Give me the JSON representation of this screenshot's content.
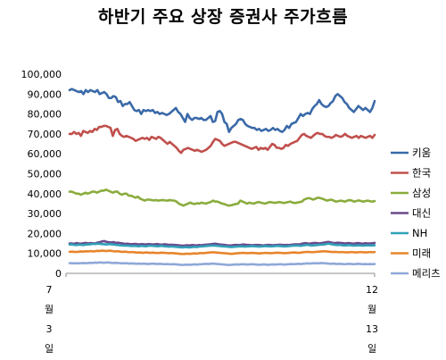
{
  "chart_data": {
    "type": "line",
    "title": "하반기 주요 상장 증권사 주가흐름",
    "xlabel": "",
    "ylabel": "",
    "ylim": [
      0,
      100000
    ],
    "y_ticks": [
      "0",
      "10,000",
      "20,000",
      "30,000",
      "40,000",
      "50,000",
      "60,000",
      "70,000",
      "80,000",
      "90,000",
      "100,000"
    ],
    "y_tick_values": [
      0,
      10000,
      20000,
      30000,
      40000,
      50000,
      60000,
      70000,
      80000,
      90000,
      100000
    ],
    "x_start_label": [
      "7",
      "월",
      "3",
      "일"
    ],
    "x_end_label": [
      "12",
      "월",
      "13",
      "일"
    ],
    "grid": false,
    "legend_position": "right",
    "series": [
      {
        "name": "키움",
        "color": "#3b6aa8",
        "values": [
          92000,
          92500,
          92000,
          91500,
          91000,
          91500,
          90000,
          92000,
          91000,
          92000,
          91500,
          91000,
          92000,
          90000,
          90500,
          91000,
          90000,
          88000,
          88000,
          89000,
          88500,
          86000,
          86500,
          84000,
          85000,
          85000,
          86000,
          84000,
          82000,
          81500,
          82000,
          80000,
          82000,
          81500,
          82000,
          81500,
          82000,
          80500,
          81000,
          80000,
          80500,
          80000,
          79500,
          80000,
          81000,
          82000,
          83000,
          81000,
          80000,
          78000,
          76000,
          80000,
          78000,
          77000,
          78000,
          78000,
          77500,
          78000,
          77000,
          77000,
          78000,
          79000,
          76000,
          76500,
          81000,
          81500,
          80000,
          76000,
          75000,
          71000,
          73000,
          74000,
          75000,
          77000,
          77500,
          77000,
          75000,
          74000,
          73500,
          73000,
          73000,
          72000,
          72500,
          71500,
          72000,
          72500,
          71500,
          72000,
          73000,
          72000,
          72500,
          71500,
          71000,
          72000,
          74000,
          73000,
          75000,
          75500,
          76000,
          78000,
          80000,
          79000,
          80000,
          80500,
          80000,
          82500,
          84000,
          85000,
          87000,
          85000,
          84000,
          83500,
          84000,
          85500,
          86500,
          89000,
          90000,
          89000,
          88000,
          86000,
          85000,
          83000,
          82000,
          81000,
          82500,
          84000,
          83000,
          82000,
          83000,
          82000,
          81000,
          83000,
          86500
        ]
      },
      {
        "name": "한국",
        "color": "#c0504d",
        "values": [
          70000,
          70000,
          71000,
          70000,
          70500,
          69000,
          71500,
          71000,
          70500,
          71500,
          71000,
          72500,
          72000,
          73500,
          73500,
          74000,
          74000,
          73500,
          73000,
          69000,
          72000,
          72500,
          70000,
          69000,
          68500,
          69000,
          68500,
          68000,
          67500,
          66500,
          67000,
          67500,
          68000,
          67500,
          68000,
          67000,
          68500,
          68000,
          67500,
          68500,
          68000,
          67000,
          66000,
          65000,
          66000,
          65000,
          64000,
          63000,
          61500,
          60500,
          62000,
          62500,
          63000,
          62500,
          62000,
          61500,
          62000,
          61500,
          61000,
          61500,
          62000,
          63000,
          64000,
          66000,
          67500,
          67000,
          66500,
          65000,
          64000,
          64500,
          65000,
          65500,
          66000,
          66000,
          65500,
          65000,
          64500,
          64000,
          63500,
          63000,
          62500,
          63000,
          63500,
          62000,
          63000,
          62500,
          63000,
          62000,
          63500,
          65000,
          64500,
          63000,
          63000,
          62500,
          63000,
          64500,
          64000,
          65000,
          65500,
          66000,
          66500,
          68000,
          69500,
          70000,
          69000,
          68500,
          68000,
          69000,
          70000,
          70500,
          70000,
          70000,
          69000,
          68500,
          68500,
          68000,
          68500,
          69500,
          69000,
          68500,
          69000,
          70000,
          69000,
          68500,
          68000,
          68500,
          69000,
          68000,
          69000,
          68500,
          68000,
          68500,
          69000,
          68000,
          69500
        ]
      },
      {
        "name": "삼성",
        "color": "#8aac3d",
        "values": [
          41000,
          41000,
          40500,
          40000,
          40000,
          39500,
          40000,
          40500,
          40000,
          40500,
          41000,
          41000,
          40500,
          41000,
          41500,
          41500,
          42000,
          41500,
          41000,
          40500,
          41000,
          41000,
          40000,
          39500,
          40000,
          40000,
          39000,
          39000,
          38500,
          38000,
          38500,
          37500,
          37000,
          36500,
          37000,
          37000,
          36800,
          36600,
          36800,
          36500,
          36700,
          36800,
          36600,
          36500,
          36800,
          36600,
          36500,
          36000,
          35000,
          34500,
          34000,
          34500,
          35000,
          35500,
          35000,
          34800,
          35200,
          35000,
          35500,
          35200,
          35000,
          35500,
          35800,
          36500,
          36000,
          36000,
          35500,
          35000,
          34800,
          34300,
          34000,
          34200,
          34500,
          34800,
          35000,
          36500,
          36000,
          35500,
          35000,
          35500,
          35200,
          35000,
          35500,
          35800,
          35500,
          35200,
          35000,
          35500,
          35800,
          35600,
          35400,
          35500,
          35800,
          35600,
          35300,
          35500,
          35800,
          36000,
          35500,
          35300,
          35500,
          35800,
          36000,
          37000,
          37500,
          37800,
          37500,
          37000,
          37500,
          38000,
          37800,
          37500,
          37000,
          36500,
          36800,
          37000,
          36500,
          36000,
          36200,
          36500,
          36300,
          36000,
          36500,
          36800,
          36500,
          36000,
          36300,
          36600,
          36300,
          36000,
          36300,
          36500,
          36200,
          36000,
          36300
        ]
      },
      {
        "name": "대신",
        "color": "#6a4a8c",
        "values": [
          15000,
          15000,
          14800,
          15200,
          15000,
          14900,
          15100,
          15300,
          15000,
          15200,
          15100,
          15000,
          15400,
          15600,
          16000,
          16200,
          15800,
          15600,
          15500,
          15700,
          15300,
          15400,
          15200,
          15000,
          14800,
          14900,
          14700,
          14600,
          14800,
          14700,
          14500,
          14700,
          14600,
          14500,
          14700,
          14600,
          14500,
          14600,
          14700,
          14500,
          14400,
          14600,
          14500,
          14300,
          14400,
          14300,
          14200,
          14100,
          14000,
          13900,
          14000,
          14100,
          14000,
          14200,
          14100,
          14000,
          14200,
          14100,
          14300,
          14400,
          14500,
          14600,
          14800,
          14900,
          14700,
          14500,
          14400,
          14300,
          14100,
          14000,
          14000,
          14200,
          14300,
          14200,
          14300,
          14500,
          14400,
          14300,
          14200,
          14100,
          14200,
          14300,
          14200,
          14100,
          14000,
          14200,
          14300,
          14200,
          14100,
          14200,
          14300,
          14400,
          14300,
          14200,
          14300,
          14200,
          14400,
          14500,
          14600,
          14500,
          14700,
          15000,
          15200,
          15000,
          14900,
          15100,
          15300,
          15200,
          15000,
          15200,
          15400,
          15600,
          15800,
          15500,
          15300,
          15200,
          15400,
          15300,
          15200,
          15000,
          15100,
          15200,
          15000,
          14900,
          15100,
          15200,
          15000,
          14900,
          15100,
          15000,
          15000,
          15100,
          15300
        ]
      },
      {
        "name": "NH",
        "color": "#31a0b8",
        "values": [
          14500,
          14500,
          14300,
          14200,
          14400,
          14300,
          14200,
          14400,
          14500,
          14600,
          14800,
          14700,
          14900,
          14800,
          14700,
          14600,
          14500,
          14700,
          14600,
          14500,
          14300,
          14200,
          14100,
          14000,
          13900,
          13900,
          13800,
          13700,
          13800,
          13700,
          13600,
          13800,
          13700,
          13600,
          13800,
          13900,
          13800,
          13700,
          13600,
          13700,
          13800,
          13600,
          13500,
          13400,
          13500,
          13400,
          13300,
          13200,
          13100,
          13000,
          13200,
          13100,
          13000,
          13200,
          13300,
          13200,
          13400,
          13500,
          13600,
          13700,
          13800,
          13900,
          14000,
          13900,
          13800,
          13700,
          13600,
          13500,
          13400,
          13300,
          13200,
          13300,
          13400,
          13500,
          13600,
          13500,
          13400,
          13500,
          13600,
          13700,
          13600,
          13500,
          13400,
          13500,
          13600,
          13700,
          13600,
          13500,
          13600,
          13700,
          13800,
          13700,
          13600,
          13500,
          13600,
          13700,
          13800,
          13900,
          14000,
          13900,
          13800,
          14000,
          14200,
          14300,
          14100,
          14000,
          14100,
          14200,
          14300,
          14400,
          14500,
          14700,
          14900,
          14700,
          14500,
          14300,
          14200,
          14300,
          14100,
          14000,
          14100,
          14200,
          14000,
          13900,
          14000,
          14100,
          14000,
          13900,
          14000,
          14100,
          14000,
          14000,
          14100
        ]
      },
      {
        "name": "미래",
        "color": "#e8852c",
        "values": [
          10800,
          10900,
          10800,
          10700,
          10900,
          11000,
          10900,
          11100,
          11000,
          11200,
          11000,
          11100,
          11300,
          11200,
          11400,
          11300,
          11200,
          11400,
          11300,
          11100,
          11000,
          11100,
          10900,
          10800,
          10900,
          10700,
          10600,
          10700,
          10600,
          10400,
          10500,
          10400,
          10300,
          10500,
          10400,
          10300,
          10400,
          10300,
          10200,
          10300,
          10400,
          10300,
          10200,
          10100,
          10200,
          10100,
          10000,
          9900,
          9800,
          9700,
          9800,
          9900,
          9800,
          9900,
          10000,
          9900,
          10100,
          10200,
          10100,
          10300,
          10400,
          10500,
          10600,
          10500,
          10400,
          10300,
          10200,
          10100,
          10000,
          9900,
          9800,
          9900,
          10000,
          10100,
          10200,
          10300,
          10200,
          10100,
          10200,
          10300,
          10200,
          10100,
          10000,
          10100,
          10200,
          10300,
          10200,
          10100,
          10200,
          10300,
          10400,
          10300,
          10200,
          10100,
          10200,
          10300,
          10400,
          10500,
          10400,
          10300,
          10400,
          10600,
          10700,
          10800,
          10700,
          10600,
          10700,
          10800,
          10900,
          11000,
          11100,
          11000,
          10900,
          10800,
          10700,
          10800,
          10700,
          10600,
          10700,
          10600,
          10500,
          10600,
          10700,
          10600,
          10500,
          10600,
          10700,
          10600,
          10500,
          10600,
          10700,
          10600,
          10700
        ]
      },
      {
        "name": "메리츠",
        "color": "#8fa8d8",
        "values": [
          5100,
          5100,
          5000,
          5100,
          5000,
          5100,
          5200,
          5100,
          5200,
          5300,
          5200,
          5400,
          5300,
          5500,
          5400,
          5300,
          5500,
          5400,
          5300,
          5200,
          5300,
          5200,
          5100,
          5000,
          5100,
          5000,
          4900,
          5000,
          4900,
          4800,
          4900,
          4800,
          4900,
          4800,
          4700,
          4800,
          4900,
          4800,
          4700,
          4800,
          4700,
          4600,
          4700,
          4600,
          4500,
          4600,
          4500,
          4400,
          4300,
          4200,
          4300,
          4400,
          4300,
          4400,
          4500,
          4400,
          4500,
          4600,
          4700,
          4800,
          4700,
          4800,
          4900,
          4800,
          4700,
          4600,
          4500,
          4400,
          4300,
          4200,
          4300,
          4400,
          4500,
          4400,
          4500,
          4600,
          4500,
          4400,
          4500,
          4600,
          4500,
          4400,
          4300,
          4400,
          4500,
          4400,
          4300,
          4400,
          4500,
          4400,
          4500,
          4600,
          4500,
          4400,
          4500,
          4600,
          4700,
          4600,
          4700,
          4800,
          4700,
          4800,
          4900,
          5000,
          4900,
          5000,
          5100,
          5000,
          5100,
          5200,
          5100,
          5000,
          4900,
          4800,
          4900,
          4800,
          4700,
          4800,
          4700,
          4600,
          4700,
          4800,
          4700,
          4600,
          4700,
          4800,
          4700,
          4600,
          4700,
          4600,
          4700,
          4600,
          4700
        ]
      }
    ]
  }
}
